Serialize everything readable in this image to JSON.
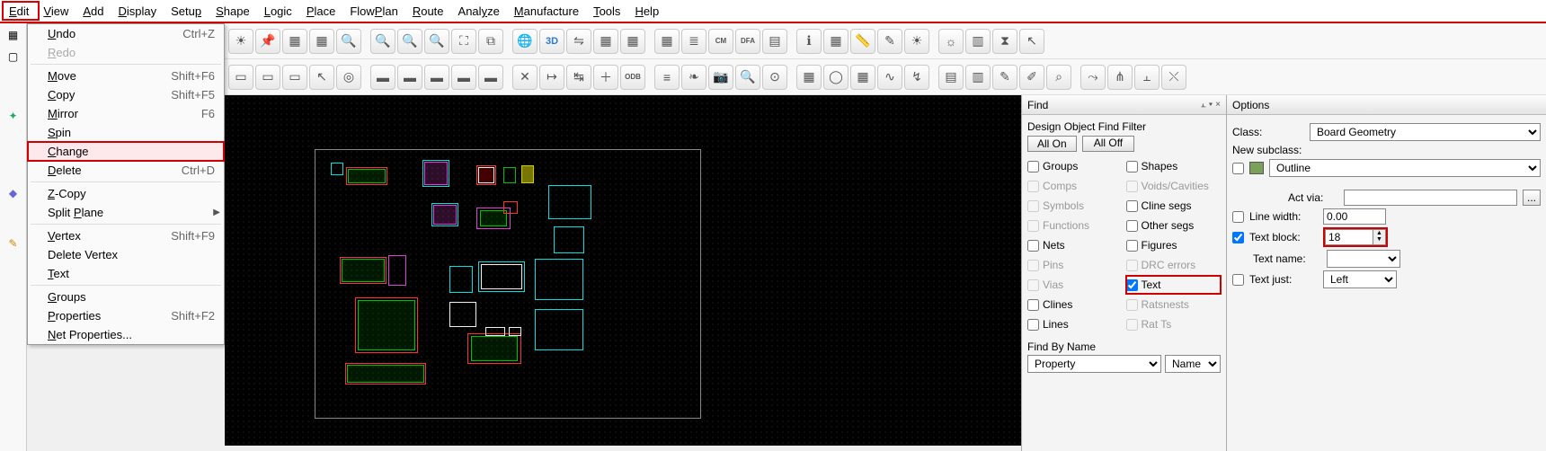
{
  "menus": [
    "Edit",
    "View",
    "Add",
    "Display",
    "Setup",
    "Shape",
    "Logic",
    "Place",
    "FlowPlan",
    "Route",
    "Analyze",
    "Manufacture",
    "Tools",
    "Help"
  ],
  "menu_underline_idx": [
    0,
    0,
    0,
    0,
    4,
    0,
    0,
    0,
    4,
    0,
    4,
    0,
    0,
    0
  ],
  "edit_menu": {
    "items": [
      {
        "label": "Undo",
        "u": 0,
        "shortcut": "Ctrl+Z",
        "enabled": true,
        "icon": "undo"
      },
      {
        "label": "Redo",
        "u": 0,
        "shortcut": "",
        "enabled": false,
        "icon": "redo"
      },
      {
        "sep": true
      },
      {
        "label": "Move",
        "u": 0,
        "shortcut": "Shift+F6",
        "enabled": true,
        "icon": "move"
      },
      {
        "label": "Copy",
        "u": 0,
        "shortcut": "Shift+F5",
        "enabled": true
      },
      {
        "label": "Mirror",
        "u": 0,
        "shortcut": "F6",
        "enabled": true,
        "icon": "mirror"
      },
      {
        "label": "Spin",
        "u": 0,
        "shortcut": "",
        "enabled": true
      },
      {
        "label": "Change",
        "u": 0,
        "shortcut": "",
        "enabled": true,
        "selected": true,
        "boxed": true
      },
      {
        "label": "Delete",
        "u": 0,
        "shortcut": "Ctrl+D",
        "enabled": true,
        "icon": "delete"
      },
      {
        "sep": true
      },
      {
        "label": "Z-Copy",
        "u": 0,
        "shortcut": "",
        "enabled": true
      },
      {
        "label": "Split Plane",
        "u": 6,
        "shortcut": "",
        "enabled": true,
        "submenu": true
      },
      {
        "sep": true
      },
      {
        "label": "Vertex",
        "u": 0,
        "shortcut": "Shift+F9",
        "enabled": true,
        "icon": "vertex"
      },
      {
        "label": "Delete Vertex",
        "u": -1,
        "shortcut": "",
        "enabled": true
      },
      {
        "label": "Text",
        "u": 0,
        "shortcut": "",
        "enabled": true,
        "icon": "text"
      },
      {
        "sep": true
      },
      {
        "label": "Groups",
        "u": 0,
        "shortcut": "",
        "enabled": true
      },
      {
        "label": "Properties",
        "u": 0,
        "shortcut": "Shift+F2",
        "enabled": true
      },
      {
        "label": "Net Properties...",
        "u": 0,
        "shortcut": "",
        "enabled": true
      }
    ]
  },
  "find": {
    "title": "Find",
    "header": "Design Object Find Filter",
    "all_on": "All On",
    "all_off": "All Off",
    "left_col": [
      {
        "label": "Groups",
        "checked": false,
        "enabled": true
      },
      {
        "label": "Comps",
        "checked": false,
        "enabled": false
      },
      {
        "label": "Symbols",
        "checked": false,
        "enabled": false
      },
      {
        "label": "Functions",
        "checked": false,
        "enabled": false
      },
      {
        "label": "Nets",
        "checked": false,
        "enabled": true
      },
      {
        "label": "Pins",
        "checked": false,
        "enabled": false
      },
      {
        "label": "Vias",
        "checked": false,
        "enabled": false
      },
      {
        "label": "Clines",
        "checked": false,
        "enabled": true
      },
      {
        "label": "Lines",
        "checked": false,
        "enabled": true
      }
    ],
    "right_col": [
      {
        "label": "Shapes",
        "checked": false,
        "enabled": true
      },
      {
        "label": "Voids/Cavities",
        "checked": false,
        "enabled": false
      },
      {
        "label": "Cline segs",
        "checked": false,
        "enabled": true
      },
      {
        "label": "Other segs",
        "checked": false,
        "enabled": true
      },
      {
        "label": "Figures",
        "checked": false,
        "enabled": true
      },
      {
        "label": "DRC errors",
        "checked": false,
        "enabled": false
      },
      {
        "label": "Text",
        "checked": true,
        "enabled": true,
        "boxed": true
      },
      {
        "label": "Ratsnests",
        "checked": false,
        "enabled": false
      },
      {
        "label": "Rat Ts",
        "checked": false,
        "enabled": false
      }
    ],
    "find_by_name": "Find By Name",
    "property": "Property",
    "name": "Name"
  },
  "options": {
    "title": "Options",
    "class_lbl": "Class:",
    "class_val": "Board Geometry",
    "new_subclass": "New subclass:",
    "subclass_val": "Outline",
    "act_via": "Act via:",
    "line_width_lbl": "Line width:",
    "line_width_val": "0.00",
    "text_block_lbl": "Text block:",
    "text_block_val": "18",
    "text_name_lbl": "Text name:",
    "text_just_lbl": "Text just:",
    "text_just_val": "Left"
  },
  "colors": {
    "highlight": "#d00000",
    "cyan": "#00e0e0",
    "magenta": "#e040d0",
    "green": "#00c000",
    "red": "#ff3030",
    "yellow": "#c0c000",
    "white": "#f0f0f0"
  },
  "toolbar_icons_row1": [
    "sun",
    "pin",
    "grid1",
    "grid2",
    "zoom-in",
    "zoom-out",
    "zoom-in2",
    "zoom-out2",
    "fitpage",
    "zoom-region",
    "earth",
    "3d",
    "flip",
    "grid-a",
    "grid-b",
    "grid-c",
    "layers",
    "cm",
    "dfa",
    "report",
    "info",
    "spreadsheet",
    "ruler",
    "light",
    "sun2",
    "sun3",
    "bars",
    "hourglass",
    "cursor"
  ],
  "toolbar_icons_row2": [
    "rect1",
    "rect2",
    "rect3",
    "pointer",
    "target",
    "blk1",
    "blk2",
    "blk3",
    "blk4",
    "blk5",
    "connect",
    "goto",
    "align",
    "add",
    "odb",
    "stack",
    "leaf",
    "camera",
    "find",
    "via",
    "squares",
    "circle",
    "grid",
    "wave",
    "wire",
    "book",
    "book2",
    "draw",
    "draw2",
    "scroll",
    "route",
    "net",
    "pair",
    "end"
  ]
}
